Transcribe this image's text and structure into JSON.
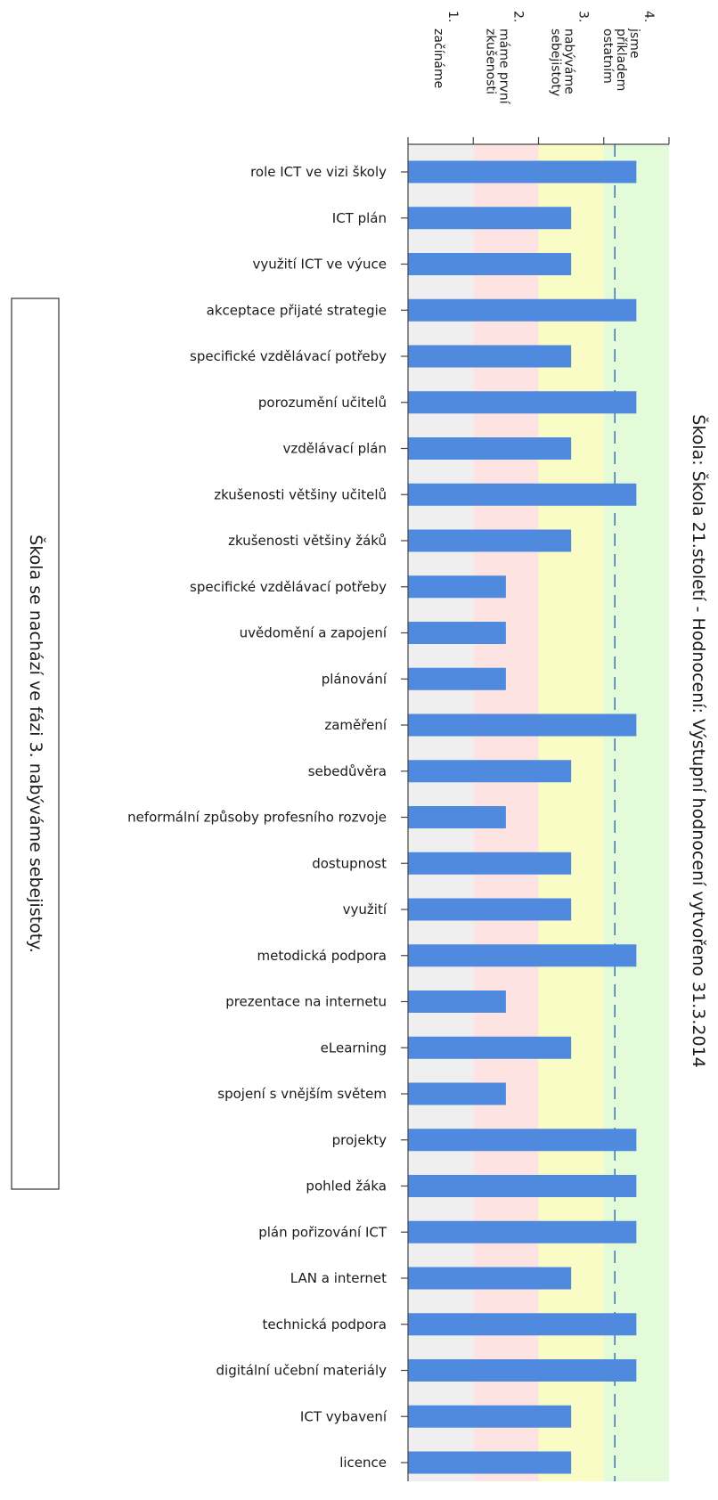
{
  "chart_data": {
    "type": "bar",
    "orientation": "horizontal",
    "title": "Škola: Škola 21.století - Hodnocení: Výstupní hodnocení vytvořeno 31.3.2014",
    "note": "Škola se nachází ve fázi 3. nabýváme sebejistoty.",
    "xlim": [
      0,
      4
    ],
    "reference_line": 3.17,
    "levels": [
      {
        "number": "1.",
        "lines": [
          "začínáme"
        ],
        "color": "#efefef"
      },
      {
        "number": "2.",
        "lines": [
          "máme první",
          "zkušenosti"
        ],
        "color": "#fde3e1"
      },
      {
        "number": "3.",
        "lines": [
          "nabýváme",
          "sebejistoty"
        ],
        "color": "#fafcc6"
      },
      {
        "number": "4.",
        "lines": [
          "jsme",
          "příkladem",
          "ostatním"
        ],
        "color": "#e4fbda"
      }
    ],
    "bar_color": "#4f8ade",
    "categories": [
      "role ICT ve vizi školy",
      "ICT plán",
      "využití ICT ve výuce",
      "akceptace přijaté strategie",
      "specifické vzdělávací potřeby",
      "porozumění učitelů",
      "vzdělávací plán",
      "zkušenosti většiny učitelů",
      "zkušenosti většiny žáků",
      "specifické vzdělávací potřeby",
      "uvědomění a zapojení",
      "plánování",
      "zaměření",
      "sebedůvěra",
      "neformální způsoby profesního rozvoje",
      "dostupnost",
      "využití",
      "metodická podpora",
      "prezentace na internetu",
      "eLearning",
      "spojení s vnějším světem",
      "projekty",
      "pohled žáka",
      "plán pořizování ICT",
      "LAN a internet",
      "technická podpora",
      "digitální učební materiály",
      "ICT vybavení",
      "licence"
    ],
    "values": [
      3.5,
      2.5,
      2.5,
      3.5,
      2.5,
      3.5,
      2.5,
      3.5,
      2.5,
      1.5,
      1.5,
      1.5,
      3.5,
      2.5,
      1.5,
      2.5,
      2.5,
      3.5,
      1.5,
      2.5,
      1.5,
      3.5,
      3.5,
      3.5,
      2.5,
      3.5,
      3.5,
      2.5,
      2.5
    ]
  }
}
